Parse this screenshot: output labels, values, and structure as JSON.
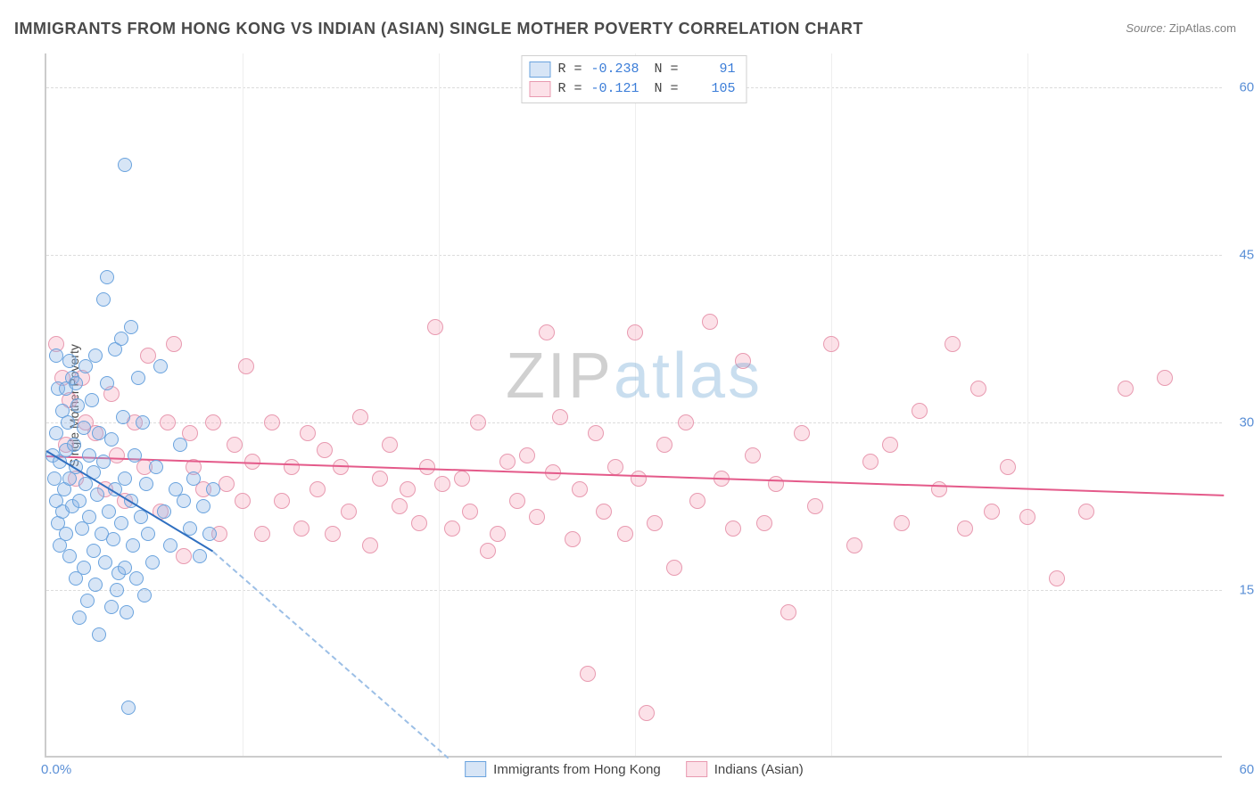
{
  "title": "IMMIGRANTS FROM HONG KONG VS INDIAN (ASIAN) SINGLE MOTHER POVERTY CORRELATION CHART",
  "source": {
    "label": "Source:",
    "value": "ZipAtlas.com"
  },
  "watermark": {
    "part1": "ZIP",
    "part2": "atlas"
  },
  "axes": {
    "y_title": "Single Mother Poverty",
    "x_min_label": "0.0%",
    "x_max_label": "60.0%",
    "xlim": [
      0,
      60
    ],
    "ylim": [
      0,
      63
    ],
    "y_ticks": [
      {
        "value": 15,
        "label": "15.0%"
      },
      {
        "value": 30,
        "label": "30.0%"
      },
      {
        "value": 45,
        "label": "45.0%"
      },
      {
        "value": 60,
        "label": "60.0%"
      }
    ],
    "x_gridlines": [
      10,
      20,
      30,
      40,
      50
    ]
  },
  "grid_color": "#dcdcdc",
  "minor_grid_color": "#eeeeee",
  "axis_color": "#cccccc",
  "series": [
    {
      "key": "hk",
      "name": "Immigrants from Hong Kong",
      "R": "-0.238",
      "N": "91",
      "fill": "rgba(140,180,230,0.35)",
      "stroke": "#6aa3de",
      "line_color": "#2f6fc0",
      "dash_color": "#9cbfe6",
      "marker_size": 16,
      "data": [
        [
          0.3,
          27
        ],
        [
          0.4,
          25
        ],
        [
          0.5,
          23
        ],
        [
          0.5,
          29
        ],
        [
          0.6,
          21
        ],
        [
          0.6,
          33
        ],
        [
          0.7,
          26.5
        ],
        [
          0.7,
          19
        ],
        [
          0.8,
          31
        ],
        [
          0.8,
          22
        ],
        [
          0.9,
          24
        ],
        [
          1.0,
          27.5
        ],
        [
          1.0,
          20
        ],
        [
          1.1,
          30
        ],
        [
          1.2,
          18
        ],
        [
          1.2,
          25
        ],
        [
          1.3,
          34
        ],
        [
          1.3,
          22.5
        ],
        [
          1.4,
          28
        ],
        [
          1.5,
          16
        ],
        [
          1.5,
          26
        ],
        [
          1.6,
          31.5
        ],
        [
          1.7,
          23
        ],
        [
          1.7,
          12.5
        ],
        [
          1.8,
          20.5
        ],
        [
          1.9,
          29.5
        ],
        [
          1.9,
          17
        ],
        [
          2.0,
          24.5
        ],
        [
          2.0,
          35
        ],
        [
          2.1,
          14
        ],
        [
          2.2,
          27
        ],
        [
          2.2,
          21.5
        ],
        [
          2.3,
          32
        ],
        [
          2.4,
          18.5
        ],
        [
          2.4,
          25.5
        ],
        [
          2.5,
          36
        ],
        [
          2.5,
          15.5
        ],
        [
          2.6,
          23.5
        ],
        [
          2.7,
          29
        ],
        [
          2.7,
          11
        ],
        [
          2.8,
          20
        ],
        [
          2.9,
          41
        ],
        [
          2.9,
          26.5
        ],
        [
          3.0,
          17.5
        ],
        [
          3.1,
          33.5
        ],
        [
          3.1,
          43
        ],
        [
          3.2,
          22
        ],
        [
          3.3,
          13.5
        ],
        [
          3.3,
          28.5
        ],
        [
          3.4,
          19.5
        ],
        [
          3.5,
          36.5
        ],
        [
          3.5,
          24
        ],
        [
          3.6,
          15
        ],
        [
          3.7,
          16.5
        ],
        [
          3.8,
          37.5
        ],
        [
          3.8,
          21
        ],
        [
          3.9,
          30.5
        ],
        [
          4.0,
          25
        ],
        [
          4.0,
          17
        ],
        [
          4.0,
          53
        ],
        [
          4.1,
          13
        ],
        [
          4.2,
          4.5
        ],
        [
          4.3,
          38.5
        ],
        [
          4.3,
          23
        ],
        [
          4.4,
          19
        ],
        [
          4.5,
          27
        ],
        [
          4.6,
          16
        ],
        [
          4.7,
          34
        ],
        [
          4.8,
          21.5
        ],
        [
          4.9,
          30
        ],
        [
          5.0,
          14.5
        ],
        [
          5.1,
          24.5
        ],
        [
          5.2,
          20
        ],
        [
          5.4,
          17.5
        ],
        [
          5.6,
          26
        ],
        [
          5.8,
          35
        ],
        [
          6.0,
          22
        ],
        [
          6.3,
          19
        ],
        [
          6.6,
          24
        ],
        [
          6.8,
          28
        ],
        [
          7.0,
          23
        ],
        [
          7.3,
          20.5
        ],
        [
          7.5,
          25
        ],
        [
          7.8,
          18
        ],
        [
          8.0,
          22.5
        ],
        [
          8.3,
          20
        ],
        [
          8.5,
          24
        ],
        [
          0.5,
          36
        ],
        [
          1.0,
          33
        ],
        [
          1.5,
          33.5
        ],
        [
          1.2,
          35.5
        ]
      ],
      "trend": {
        "x1": 0,
        "y1": 27.5,
        "x2": 8.5,
        "y2": 18.5
      },
      "trend_dash": {
        "x1": 8.5,
        "y1": 18.5,
        "x2": 20.5,
        "y2": 0
      }
    },
    {
      "key": "ind",
      "name": "Indians (Asian)",
      "R": "-0.121",
      "N": "105",
      "fill": "rgba(245,170,190,0.35)",
      "stroke": "#e89ab0",
      "line_color": "#e45a8a",
      "marker_size": 18,
      "data": [
        [
          0.5,
          37
        ],
        [
          0.8,
          34
        ],
        [
          1.0,
          28
        ],
        [
          1.2,
          32
        ],
        [
          1.5,
          25
        ],
        [
          1.8,
          34
        ],
        [
          2.0,
          30
        ],
        [
          2.5,
          29
        ],
        [
          3.0,
          24
        ],
        [
          3.3,
          32.5
        ],
        [
          3.6,
          27
        ],
        [
          4.0,
          23
        ],
        [
          4.5,
          30
        ],
        [
          5.0,
          26
        ],
        [
          5.2,
          36
        ],
        [
          5.8,
          22
        ],
        [
          6.2,
          30
        ],
        [
          6.5,
          37
        ],
        [
          7.0,
          18
        ],
        [
          7.3,
          29
        ],
        [
          7.5,
          26
        ],
        [
          8.0,
          24
        ],
        [
          8.5,
          30
        ],
        [
          8.8,
          20
        ],
        [
          9.2,
          24.5
        ],
        [
          9.6,
          28
        ],
        [
          10.0,
          23
        ],
        [
          10.2,
          35
        ],
        [
          10.5,
          26.5
        ],
        [
          11.0,
          20
        ],
        [
          11.5,
          30
        ],
        [
          12.0,
          23
        ],
        [
          12.5,
          26
        ],
        [
          13.0,
          20.5
        ],
        [
          13.3,
          29
        ],
        [
          13.8,
          24
        ],
        [
          14.2,
          27.5
        ],
        [
          14.6,
          20
        ],
        [
          15.0,
          26
        ],
        [
          15.4,
          22
        ],
        [
          16.0,
          30.5
        ],
        [
          16.5,
          19
        ],
        [
          17.0,
          25
        ],
        [
          17.5,
          28
        ],
        [
          18.0,
          22.5
        ],
        [
          18.4,
          24
        ],
        [
          19.0,
          21
        ],
        [
          19.4,
          26
        ],
        [
          19.8,
          38.5
        ],
        [
          20.2,
          24.5
        ],
        [
          20.7,
          20.5
        ],
        [
          21.2,
          25
        ],
        [
          21.6,
          22
        ],
        [
          22.0,
          30
        ],
        [
          22.5,
          18.5
        ],
        [
          23.0,
          20
        ],
        [
          23.5,
          26.5
        ],
        [
          24.0,
          23
        ],
        [
          24.5,
          27
        ],
        [
          25.0,
          21.5
        ],
        [
          25.5,
          38
        ],
        [
          25.8,
          25.5
        ],
        [
          26.2,
          30.5
        ],
        [
          26.8,
          19.5
        ],
        [
          27.2,
          24
        ],
        [
          27.6,
          7.5
        ],
        [
          28.0,
          29
        ],
        [
          28.4,
          22
        ],
        [
          29.0,
          26
        ],
        [
          29.5,
          20
        ],
        [
          30.0,
          38
        ],
        [
          30.2,
          25
        ],
        [
          30.6,
          4
        ],
        [
          31.0,
          21
        ],
        [
          31.5,
          28
        ],
        [
          32.0,
          17
        ],
        [
          32.6,
          30
        ],
        [
          33.2,
          23
        ],
        [
          33.8,
          39
        ],
        [
          34.4,
          25
        ],
        [
          35.0,
          20.5
        ],
        [
          35.5,
          35.5
        ],
        [
          36.0,
          27
        ],
        [
          36.6,
          21
        ],
        [
          37.2,
          24.5
        ],
        [
          37.8,
          13
        ],
        [
          38.5,
          29
        ],
        [
          39.2,
          22.5
        ],
        [
          40.0,
          37
        ],
        [
          41.2,
          19
        ],
        [
          42.0,
          26.5
        ],
        [
          43.0,
          28
        ],
        [
          43.6,
          21
        ],
        [
          44.5,
          31
        ],
        [
          45.5,
          24
        ],
        [
          46.2,
          37
        ],
        [
          46.8,
          20.5
        ],
        [
          47.5,
          33
        ],
        [
          48.2,
          22
        ],
        [
          49.0,
          26
        ],
        [
          50.0,
          21.5
        ],
        [
          51.5,
          16
        ],
        [
          53.0,
          22
        ],
        [
          55.0,
          33
        ],
        [
          57.0,
          34
        ]
      ],
      "trend": {
        "x1": 0,
        "y1": 27,
        "x2": 60,
        "y2": 23.5
      }
    }
  ]
}
